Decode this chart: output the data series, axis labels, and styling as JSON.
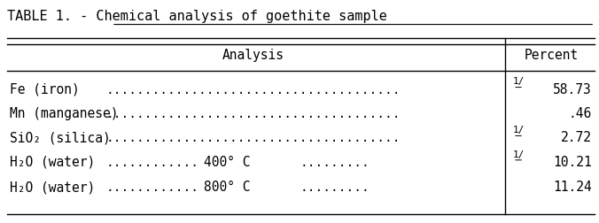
{
  "title": "TABLE 1. - Chemical analysis of goethite sample",
  "title_underline_start": "Chemical analysis of goethite sample",
  "col_header_left": "Analysis",
  "col_header_right": "Percent",
  "rows": [
    {
      "label": "Fe (iron)",
      "dots": true,
      "footnote": "1/",
      "value": "58.73",
      "subscript_label": null
    },
    {
      "label": "Mn (manganese)",
      "dots": true,
      "footnote": "",
      "value": ".46",
      "subscript_label": null
    },
    {
      "label": "SiO₂ (silica)",
      "dots": true,
      "footnote": "1/",
      "value": "2.72",
      "subscript_label": null
    },
    {
      "label": "H₂O (water)",
      "dots": true,
      "mid_text": "400° C",
      "footnote": "1/",
      "value": "10.21",
      "subscript_label": null
    },
    {
      "label": "H₂O (water)",
      "dots": true,
      "mid_text": "800° C",
      "footnote": "",
      "value": "11.24",
      "subscript_label": null
    }
  ],
  "col_split": 0.845,
  "bg_color": "#ffffff",
  "font_family": "monospace",
  "font_size": 10.5,
  "title_font_size": 11
}
